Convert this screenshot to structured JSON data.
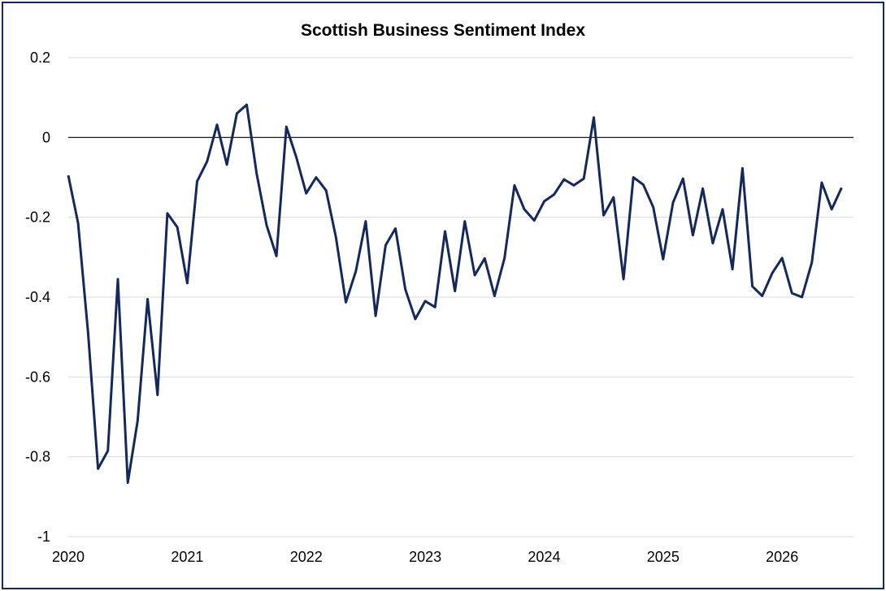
{
  "chart_data": {
    "type": "line",
    "title": "Scottish Business Sentiment Index",
    "xlabel": "",
    "ylabel": "",
    "ylim": [
      -1,
      0.2
    ],
    "y_ticks": [
      0.2,
      0,
      -0.2,
      -0.4,
      -0.6,
      -0.8,
      -1
    ],
    "y_tick_labels": [
      "0.2",
      "0",
      "-0.2",
      "-0.4",
      "-0.6",
      "-0.8",
      "-1"
    ],
    "x_tick_labels": [
      "2020",
      "2021",
      "2022",
      "2023",
      "2024",
      "2025",
      "2026"
    ],
    "x_tick_positions": [
      2020.0,
      2021.0,
      2022.0,
      2023.0,
      2024.0,
      2025.0,
      2026.0
    ],
    "xlim": [
      2020.0,
      2026.6
    ],
    "grid": true,
    "line_color": "#14285a",
    "gridline_color": "#d9d9d9",
    "zero_line_color": "#000000",
    "series": [
      {
        "x": [
          2020.0,
          2020.083,
          2020.167,
          2020.25,
          2020.333,
          2020.417,
          2020.5,
          2020.583,
          2020.667,
          2020.75,
          2020.833,
          2020.917,
          2021.0,
          2021.083,
          2021.167,
          2021.25,
          2021.333,
          2021.417,
          2021.5,
          2021.583,
          2021.667,
          2021.75,
          2021.833,
          2021.917,
          2022.0,
          2022.083,
          2022.167,
          2022.25,
          2022.333,
          2022.417,
          2022.5,
          2022.583,
          2022.667,
          2022.75,
          2022.833,
          2022.917,
          2023.0,
          2023.083,
          2023.167,
          2023.25,
          2023.333,
          2023.417,
          2023.5,
          2023.583,
          2023.667,
          2023.75,
          2023.833,
          2023.917,
          2024.0,
          2024.083,
          2024.167,
          2024.25,
          2024.333,
          2024.417,
          2024.5,
          2024.583,
          2024.667,
          2024.75,
          2024.833,
          2024.917,
          2025.0,
          2025.083,
          2025.167,
          2025.25,
          2025.333,
          2025.417,
          2025.5,
          2025.583,
          2025.667,
          2025.75,
          2025.833,
          2025.917,
          2026.0,
          2026.083,
          2026.167,
          2026.25,
          2026.333,
          2026.417,
          2026.5
        ],
        "values": [
          -0.095,
          -0.215,
          -0.49,
          -0.83,
          -0.785,
          -0.355,
          -0.865,
          -0.71,
          -0.405,
          -0.645,
          -0.19,
          -0.225,
          -0.365,
          -0.11,
          -0.06,
          0.032,
          -0.068,
          0.06,
          0.082,
          -0.09,
          -0.22,
          -0.297,
          0.027,
          -0.05,
          -0.14,
          -0.1,
          -0.133,
          -0.25,
          -0.413,
          -0.335,
          -0.21,
          -0.447,
          -0.27,
          -0.228,
          -0.38,
          -0.455,
          -0.41,
          -0.425,
          -0.235,
          -0.385,
          -0.21,
          -0.345,
          -0.303,
          -0.397,
          -0.302,
          -0.12,
          -0.18,
          -0.208,
          -0.16,
          -0.143,
          -0.105,
          -0.12,
          -0.103,
          0.05,
          -0.195,
          -0.15,
          -0.355,
          -0.1,
          -0.118,
          -0.175,
          -0.305,
          -0.163,
          -0.103,
          -0.245,
          -0.128,
          -0.265,
          -0.18,
          -0.33,
          -0.077,
          -0.373,
          -0.397,
          -0.34,
          -0.302,
          -0.39,
          -0.4,
          -0.313,
          -0.113,
          -0.18,
          -0.126
        ]
      }
    ]
  }
}
